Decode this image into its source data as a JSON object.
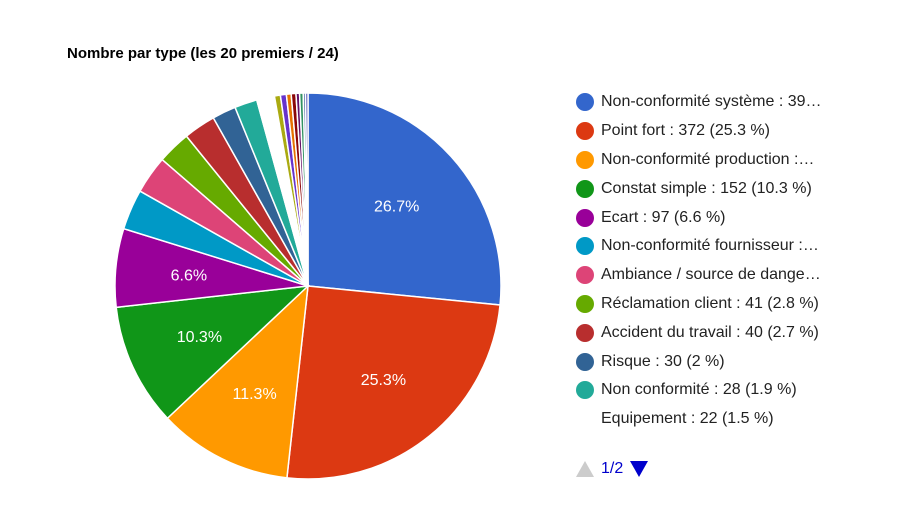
{
  "chart_data": {
    "type": "pie",
    "title": "Nombre par type (les 20 premiers / 24)",
    "slices": [
      {
        "label": "Non-conformité système : 39…",
        "value": 26.7,
        "color": "#3366cc",
        "show_pct": true,
        "pct_label": "26.7%"
      },
      {
        "label": "Point fort : 372 (25.3 %)",
        "value": 25.3,
        "color": "#dc3912",
        "show_pct": true,
        "pct_label": "25.3%"
      },
      {
        "label": "Non-conformité production :…",
        "value": 11.3,
        "color": "#ff9900",
        "show_pct": true,
        "pct_label": "11.3%"
      },
      {
        "label": "Constat simple : 152 (10.3 %)",
        "value": 10.3,
        "color": "#109618",
        "show_pct": true,
        "pct_label": "10.3%"
      },
      {
        "label": "Ecart : 97 (6.6 %)",
        "value": 6.6,
        "color": "#990099",
        "show_pct": true,
        "pct_label": "6.6%"
      },
      {
        "label": "Non-conformité fournisseur :…",
        "value": 3.4,
        "color": "#0099c6",
        "show_pct": false,
        "pct_label": ""
      },
      {
        "label": "Ambiance / source de dange…",
        "value": 3.2,
        "color": "#dd4477",
        "show_pct": false,
        "pct_label": ""
      },
      {
        "label": "Réclamation client : 41 (2.8 %)",
        "value": 2.8,
        "color": "#66aa00",
        "show_pct": false,
        "pct_label": ""
      },
      {
        "label": "Accident du travail : 40 (2.7 %)",
        "value": 2.7,
        "color": "#b82e2e",
        "show_pct": false,
        "pct_label": ""
      },
      {
        "label": "Risque : 30 (2 %)",
        "value": 2.0,
        "color": "#316395",
        "show_pct": false,
        "pct_label": ""
      },
      {
        "label": "Non conformité : 28 (1.9 %)",
        "value": 1.9,
        "color": "#22aa99",
        "show_pct": false,
        "pct_label": ""
      },
      {
        "label": "Equipement : 22 (1.5 %)",
        "value": 1.5,
        "color": "#ffffff",
        "show_pct": false,
        "pct_label": ""
      },
      {
        "label": "",
        "value": 0.5,
        "color": "#aaaa11",
        "show_pct": false,
        "pct_label": ""
      },
      {
        "label": "",
        "value": 0.5,
        "color": "#6633cc",
        "show_pct": false,
        "pct_label": ""
      },
      {
        "label": "",
        "value": 0.4,
        "color": "#e67300",
        "show_pct": false,
        "pct_label": ""
      },
      {
        "label": "",
        "value": 0.4,
        "color": "#8b0707",
        "show_pct": false,
        "pct_label": ""
      },
      {
        "label": "",
        "value": 0.3,
        "color": "#651067",
        "show_pct": false,
        "pct_label": ""
      },
      {
        "label": "",
        "value": 0.3,
        "color": "#329262",
        "show_pct": false,
        "pct_label": ""
      },
      {
        "label": "",
        "value": 0.2,
        "color": "#5574a6",
        "show_pct": false,
        "pct_label": ""
      },
      {
        "label": "",
        "value": 0.2,
        "color": "#3b3eac",
        "show_pct": false,
        "pct_label": ""
      }
    ],
    "legend_position": "right",
    "legend_visible_count": 12
  },
  "pagination": {
    "text": "1/2"
  }
}
